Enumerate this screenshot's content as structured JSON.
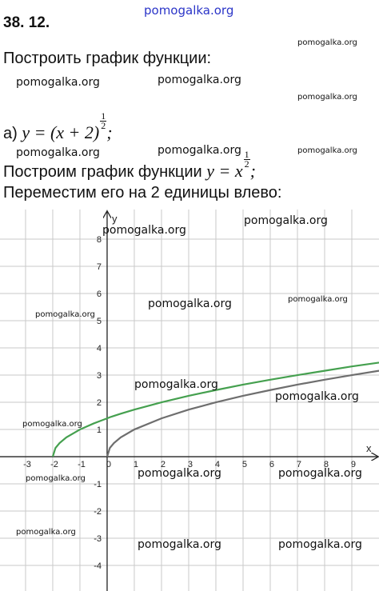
{
  "heading": "38. 12.",
  "task": "Построить график функции:",
  "item": {
    "label": "а)",
    "base": "y = (x + 2)",
    "exp_num": "1",
    "exp_den": "2",
    "end": ";"
  },
  "step1": {
    "text": "Построим график функции",
    "base": "y = x",
    "exp_num": "1",
    "exp_den": "2",
    "end": ";"
  },
  "step2": "Переместим его на 2 единицы влево:",
  "watermarks": [
    "pomogalka.org",
    "pomogalka.org",
    "pomogalka.org",
    "pomogalka.org",
    "pomogalka.org",
    "pomogalka.org",
    "pomogalka.org",
    "pomogalka.org",
    "pomogalka.org",
    "pomogalka.org",
    "pomogalka.org",
    "pomogalka.org",
    "pomogalka.org",
    "pomogalka.org",
    "pomogalka.org",
    "pomogalka.org",
    "pomogalka.org",
    "pomogalka.org",
    "pomogalka.org",
    "pomogalka.org",
    "pomogalka.org",
    "pomogalka.org"
  ],
  "chart_data": {
    "type": "line",
    "x_label": "x",
    "y_label": "y",
    "x": [
      -2,
      -1.9,
      -1.75,
      -1.5,
      -1,
      -0.5,
      0,
      0.1,
      0.25,
      0.5,
      1,
      2,
      3,
      4,
      5,
      6,
      7,
      8,
      9,
      10
    ],
    "series": [
      {
        "color": "#45a04f",
        "values": [
          0,
          0.32,
          0.5,
          0.71,
          1,
          1.22,
          1.41,
          1.45,
          1.5,
          1.58,
          1.73,
          2,
          2.24,
          2.45,
          2.65,
          2.83,
          3,
          3.16,
          3.32,
          3.46
        ]
      },
      {
        "color": "#6e6e6e",
        "values": [
          null,
          null,
          null,
          null,
          null,
          null,
          0,
          0.32,
          0.5,
          0.71,
          1,
          1.41,
          1.73,
          2,
          2.24,
          2.45,
          2.65,
          2.83,
          3,
          3.16
        ]
      }
    ],
    "xlim": [
      -3.94,
      10
    ],
    "ylim": [
      -4.94,
      9.09
    ],
    "xticks": [
      -3,
      -2,
      -1,
      0,
      1,
      2,
      3,
      4,
      5,
      6,
      7,
      8,
      9
    ],
    "yticks": [
      -4,
      -3,
      -2,
      -1,
      1,
      2,
      3,
      4,
      5,
      6,
      7,
      8
    ],
    "grid": true
  }
}
